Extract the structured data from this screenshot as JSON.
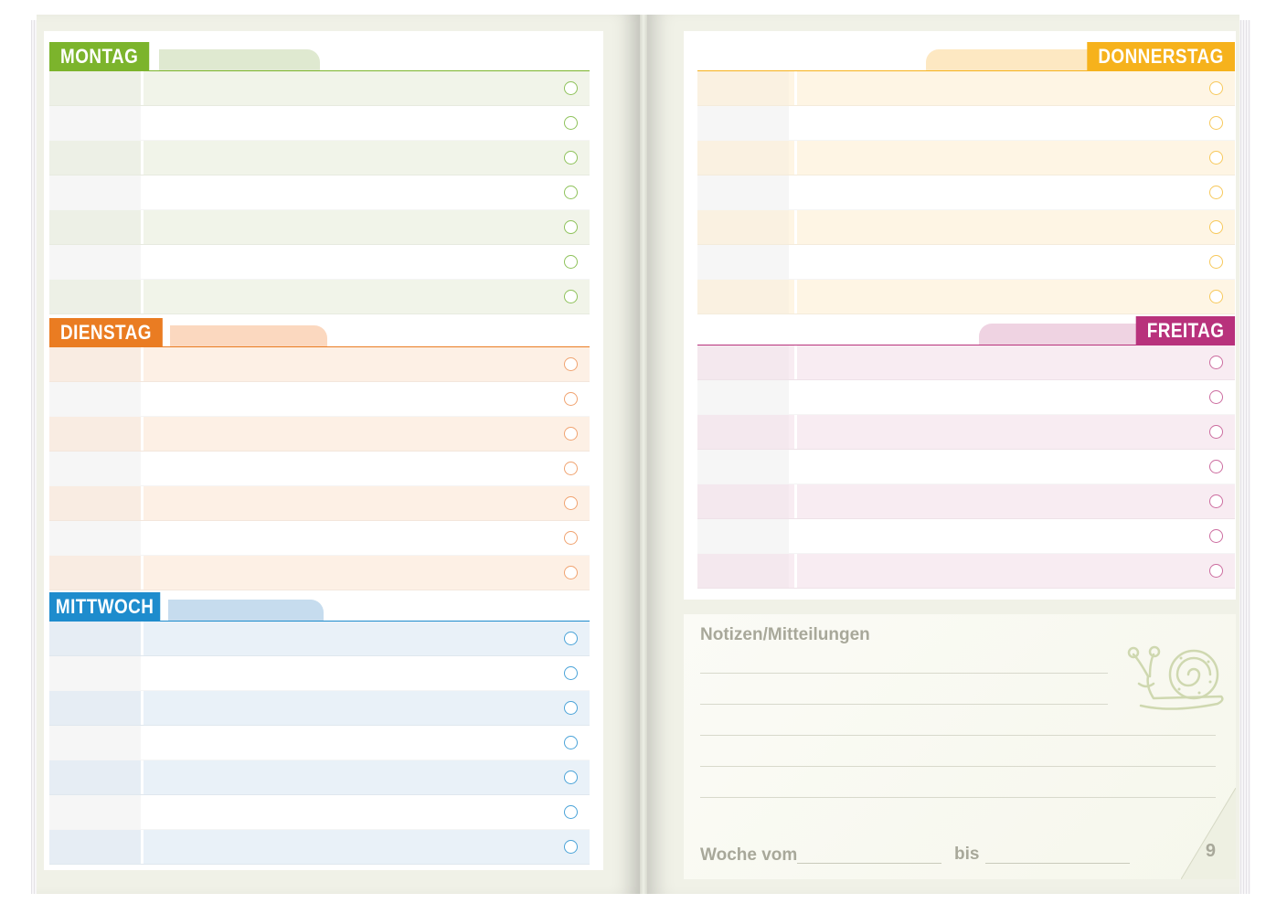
{
  "days": [
    {
      "key": "montag",
      "label": "MONTAG",
      "color": "#7cb42c",
      "fill": "#dfe9d0",
      "row_a": "#f1f4e9",
      "row_b": "#ffffff",
      "circle": "#8ec25a",
      "rows": 7
    },
    {
      "key": "dienstag",
      "label": "DIENSTAG",
      "color": "#ea7c22",
      "fill": "#fbd8bf",
      "row_a": "#fdf0e5",
      "row_b": "#ffffff",
      "circle": "#f0a370",
      "rows": 7
    },
    {
      "key": "mittwoch",
      "label": "MITTWOCH",
      "color": "#1e8ccd",
      "fill": "#c6dcee",
      "row_a": "#e9f1f8",
      "row_b": "#ffffff",
      "circle": "#4aa3d8",
      "rows": 7
    },
    {
      "key": "donnerstag",
      "label": "DONNERSTAG",
      "color": "#f6b21c",
      "fill": "#fde8c2",
      "row_a": "#fef5e4",
      "row_b": "#ffffff",
      "circle": "#f7c85a",
      "rows": 7
    },
    {
      "key": "freitag",
      "label": "FREITAG",
      "color": "#b8327c",
      "fill": "#efd3e2",
      "row_a": "#f8ecf2",
      "row_b": "#ffffff",
      "circle": "#cc6c9f",
      "rows": 7
    }
  ],
  "notes": {
    "title": "Notizen/Mitteilungen",
    "week_from_label": "Woche vom",
    "until_label": "bis"
  },
  "page_number": "9",
  "icons": [
    "snail-icon",
    "checkbox-circle-icon"
  ]
}
